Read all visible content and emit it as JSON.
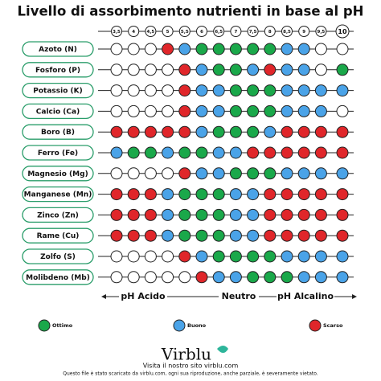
{
  "title": "Livello di assorbimento nutrienti in base al pH",
  "ph_values": [
    "3,5",
    "4",
    "4,5",
    "5",
    "5,5",
    "6",
    "6,5",
    "7",
    "7,5",
    "8",
    "8,5",
    "9",
    "9,5",
    "10"
  ],
  "legend": [
    {
      "label": "Ottimo",
      "color": "#1aa84a"
    },
    {
      "label": "Buono",
      "color": "#4aa3e8"
    },
    {
      "label": "Scarso",
      "color": "#e0262a"
    }
  ],
  "nutrients": [
    {
      "name": "Azoto (N)",
      "ratings": [
        null,
        null,
        null,
        2,
        1,
        0,
        0,
        0,
        0,
        0,
        1,
        1,
        null,
        null
      ]
    },
    {
      "name": "Fosforo (P)",
      "ratings": [
        null,
        null,
        null,
        null,
        2,
        1,
        0,
        0,
        1,
        2,
        1,
        1,
        null,
        0
      ]
    },
    {
      "name": "Potassio (K)",
      "ratings": [
        null,
        null,
        null,
        null,
        2,
        1,
        1,
        0,
        0,
        0,
        1,
        1,
        1,
        1
      ]
    },
    {
      "name": "Calcio (Ca)",
      "ratings": [
        null,
        null,
        null,
        null,
        2,
        1,
        1,
        0,
        0,
        0,
        1,
        1,
        1,
        null
      ]
    },
    {
      "name": "Boro (B)",
      "ratings": [
        2,
        2,
        2,
        2,
        2,
        1,
        0,
        0,
        0,
        1,
        2,
        2,
        2,
        2
      ]
    },
    {
      "name": "Ferro (Fe)",
      "ratings": [
        1,
        0,
        0,
        1,
        0,
        0,
        1,
        1,
        2,
        2,
        2,
        2,
        2,
        2
      ]
    },
    {
      "name": "Magnesio (Mg)",
      "ratings": [
        null,
        null,
        null,
        null,
        2,
        1,
        1,
        0,
        0,
        0,
        1,
        1,
        1,
        1
      ]
    },
    {
      "name": "Manganese (Mn)",
      "ratings": [
        2,
        2,
        2,
        1,
        0,
        0,
        0,
        1,
        1,
        2,
        2,
        2,
        2,
        2
      ]
    },
    {
      "name": "Zinco (Zn)",
      "ratings": [
        2,
        2,
        2,
        1,
        0,
        0,
        0,
        1,
        1,
        2,
        2,
        2,
        2,
        2
      ]
    },
    {
      "name": "Rame (Cu)",
      "ratings": [
        2,
        2,
        2,
        1,
        0,
        0,
        0,
        1,
        1,
        2,
        2,
        2,
        2,
        2
      ]
    },
    {
      "name": "Zolfo (S)",
      "ratings": [
        null,
        null,
        null,
        null,
        2,
        1,
        0,
        0,
        0,
        0,
        1,
        1,
        1,
        1
      ]
    },
    {
      "name": "Molibdeno (Mb)",
      "ratings": [
        null,
        null,
        null,
        null,
        null,
        2,
        1,
        1,
        0,
        0,
        0,
        1,
        1,
        1
      ]
    }
  ],
  "scale_labels": {
    "acid": "pH Acido",
    "neutral": "Neutro",
    "alkaline": "pH Alcalino"
  },
  "brand": "Virblu",
  "visit": "Visita il nostro sito virblu.com",
  "disclaimer": "Questo file è stato scaricato da virblu.com, ogni sua riproduzione, anche parziale, è severamente vietato."
}
